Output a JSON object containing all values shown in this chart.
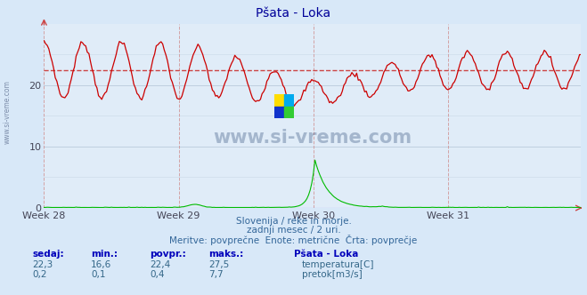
{
  "title": "Pšata - Loka",
  "bg_color": "#d8e8f8",
  "plot_bg_color": "#e0ecf8",
  "grid_color": "#c0d0e0",
  "grid_vline_color": "#d09090",
  "temp_color": "#cc0000",
  "flow_color": "#00bb00",
  "height_color": "#8888ff",
  "avg_line_color": "#cc4444",
  "avg_temp": 22.4,
  "ylim": [
    0,
    30
  ],
  "yticks": [
    0,
    10,
    20
  ],
  "week_labels": [
    "Week 28",
    "Week 29",
    "Week 30",
    "Week 31"
  ],
  "n_points": 336,
  "temp_min": 16.6,
  "temp_max": 27.5,
  "temp_avg": 22.4,
  "temp_now": 22.3,
  "flow_min": 0.1,
  "flow_max": 7.7,
  "flow_avg": 0.4,
  "flow_now": 0.2,
  "subtitle1": "Slovenija / reke in morje.",
  "subtitle2": "zadnji mesec / 2 uri.",
  "subtitle3": "Meritve: povprečne  Enote: metrične  Črta: povprečje",
  "legend_title": "Pšata - Loka",
  "label_temp": "temperatura[C]",
  "label_flow": "pretok[m3/s]",
  "col_headers": [
    "sedaj:",
    "min.:",
    "povpr.:",
    "maks.:"
  ],
  "watermark": "www.si-vreme.com",
  "logo_colors": [
    "#ffdd00",
    "#00aaee",
    "#1133cc",
    "#33cc33"
  ]
}
